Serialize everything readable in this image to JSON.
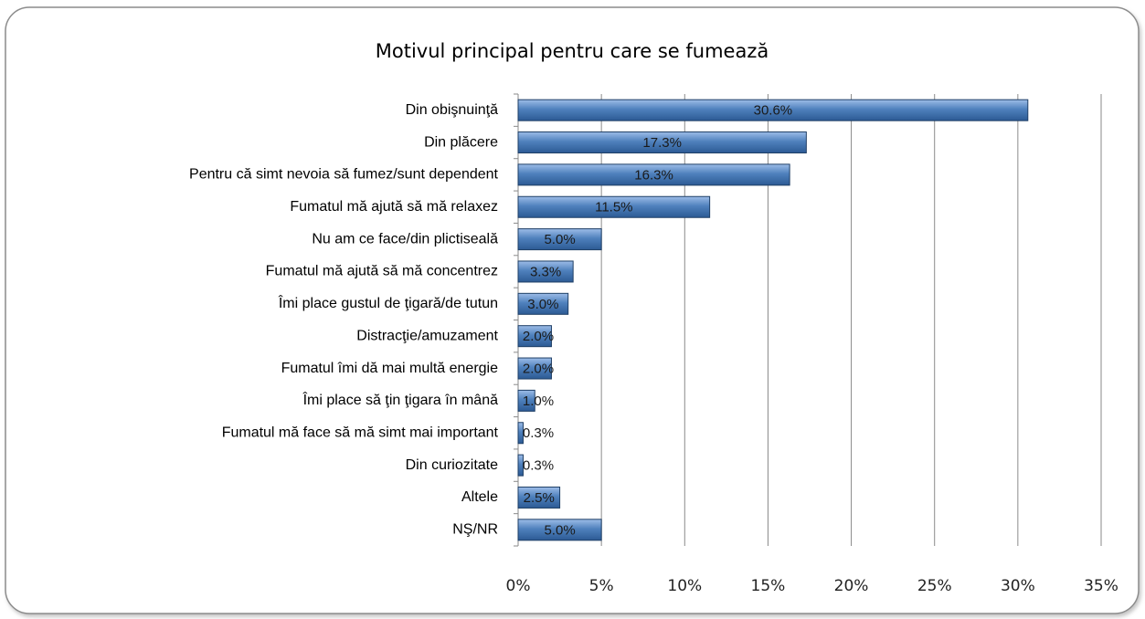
{
  "chart_data": {
    "type": "bar",
    "title": "Motivul principal pentru care se fumează",
    "categories": [
      "Din obişnuinţă",
      "Din plăcere",
      "Pentru că simt nevoia să fumez/sunt dependent",
      "Fumatul mă ajută să mă relaxez",
      "Nu am ce face/din plictiseală",
      "Fumatul mă ajută să mă concentrez",
      "Îmi place gustul de ţigară/de tutun",
      "Distracţie/amuzament",
      "Fumatul îmi dă mai multă energie",
      "Îmi place să ţin ţigara în mână",
      "Fumatul mă face să mă simt mai important",
      "Din curiozitate",
      "Altele",
      "NŞ/NR"
    ],
    "values": [
      30.6,
      17.3,
      16.3,
      11.5,
      5.0,
      3.3,
      3.0,
      2.0,
      2.0,
      1.0,
      0.3,
      0.3,
      2.5,
      5.0
    ],
    "value_labels": [
      "30.6%",
      "17.3%",
      "16.3%",
      "11.5%",
      "5.0%",
      "3.3%",
      "3.0%",
      "2.0%",
      "2.0%",
      "1.0%",
      "0.3%",
      "0.3%",
      "2.5%",
      "5.0%"
    ],
    "color": "#4f81bd",
    "xlim": [
      0,
      35
    ],
    "xticks": [
      {
        "value": 0,
        "label": "0%"
      },
      {
        "value": 5,
        "label": "5%"
      },
      {
        "value": 10,
        "label": "10%"
      },
      {
        "value": 15,
        "label": "15%"
      },
      {
        "value": 20,
        "label": "20%"
      },
      {
        "value": 25,
        "label": "25%"
      },
      {
        "value": 30,
        "label": "30%"
      },
      {
        "value": 35,
        "label": "35%"
      }
    ],
    "grid": true
  }
}
